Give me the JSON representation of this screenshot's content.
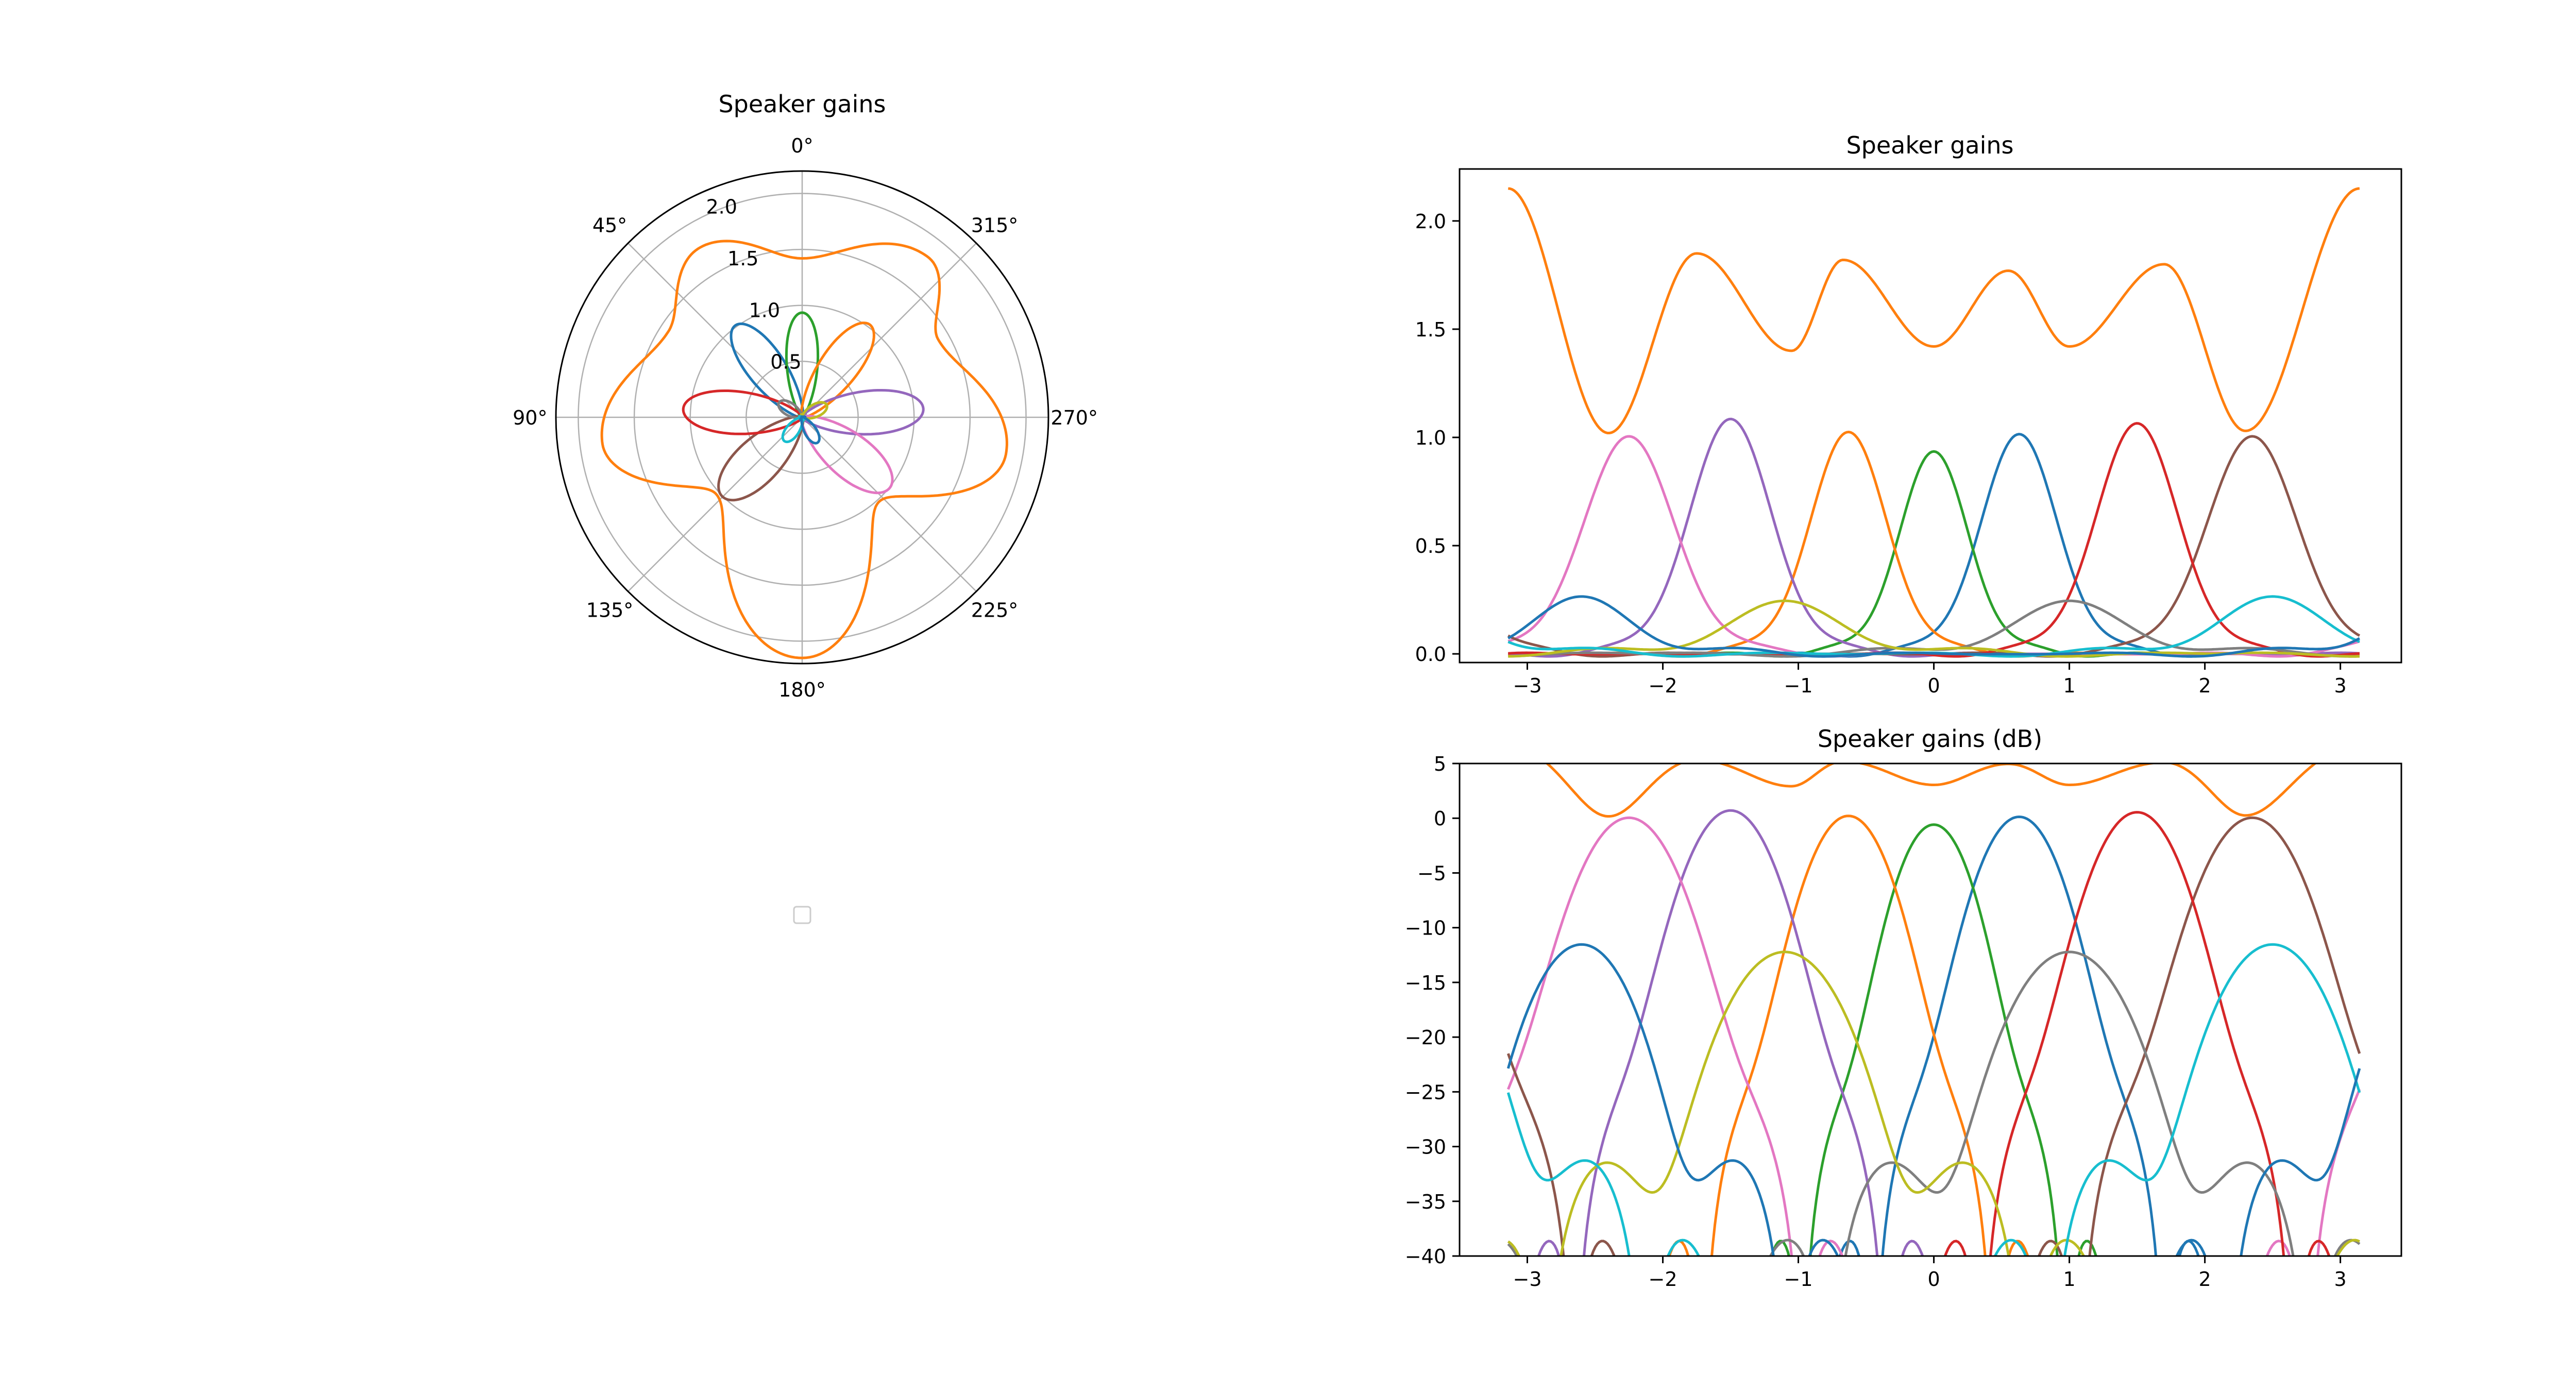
{
  "chart_data": [
    {
      "type": "line",
      "projection": "polar",
      "title": "Speaker gains",
      "theta_zero": "top",
      "theta_direction": "counterclockwise",
      "theta_ticks": [
        "0°",
        "45°",
        "90°",
        "135°",
        "180°",
        "225°",
        "270°",
        "315°"
      ],
      "r_ticks": [
        "0.5",
        "1.0",
        "1.5",
        "2.0"
      ],
      "r_tick_values": [
        0.5,
        1.0,
        1.5,
        2.0
      ],
      "rlim": [
        0,
        2.2
      ],
      "grid": true,
      "legend": "center, empty (no entries)"
    },
    {
      "type": "line",
      "title": "Speaker gains",
      "xlim": [
        -3.5,
        3.45
      ],
      "ylim": [
        -0.04,
        2.24
      ],
      "x_ticks": [
        "−3",
        "−2",
        "−1",
        "0",
        "1",
        "2",
        "3"
      ],
      "x_tick_values": [
        -3,
        -2,
        -1,
        0,
        1,
        2,
        3
      ],
      "y_ticks": [
        "0.0",
        "0.5",
        "1.0",
        "1.5",
        "2.0"
      ],
      "y_tick_values": [
        0,
        0.5,
        1,
        1.5,
        2
      ],
      "grid": false
    },
    {
      "type": "line",
      "title": "Speaker gains (dB)",
      "xlim": [
        -3.5,
        3.45
      ],
      "ylim": [
        -40,
        5
      ],
      "x_ticks": [
        "−3",
        "−2",
        "−1",
        "0",
        "1",
        "2",
        "3"
      ],
      "x_tick_values": [
        -3,
        -2,
        -1,
        0,
        1,
        2,
        3
      ],
      "y_ticks": [
        "5",
        "0",
        "−5",
        "−10",
        "−15",
        "−20",
        "−25",
        "−30",
        "−35",
        "−40"
      ],
      "y_tick_values": [
        5,
        0,
        -5,
        -10,
        -15,
        -20,
        -25,
        -30,
        -35,
        -40
      ],
      "grid": false
    }
  ],
  "series_model": {
    "x_range": [
      -3.14159,
      3.14159
    ],
    "lobes": [
      {
        "color": "#1f77b4",
        "center": 0.63,
        "peak": 0.98,
        "width": 0.42
      },
      {
        "color": "#2ca02c",
        "center": 0.0,
        "peak": 0.9,
        "width": 0.38
      },
      {
        "color": "#ff7f0e",
        "center": -0.63,
        "peak": 0.99,
        "width": 0.42
      },
      {
        "color": "#9467bd",
        "center": -1.5,
        "peak": 1.05,
        "width": 0.45
      },
      {
        "color": "#e377c2",
        "center": -2.25,
        "peak": 0.97,
        "width": 0.5
      },
      {
        "color": "#8c564b",
        "center": 2.35,
        "peak": 0.97,
        "width": 0.5
      },
      {
        "color": "#d62728",
        "center": 1.5,
        "peak": 1.03,
        "width": 0.45
      },
      {
        "color": "#7f7f7f",
        "center": 1.0,
        "peak": 0.21,
        "width": 0.7
      },
      {
        "color": "#bcbd22",
        "center": -1.1,
        "peak": 0.21,
        "width": 0.7
      },
      {
        "color": "#17becf",
        "center": 2.5,
        "peak": 0.23,
        "width": 0.65
      },
      {
        "color": "#1f77b4",
        "center": -2.6,
        "peak": 0.23,
        "width": 0.6
      }
    ],
    "sum": {
      "color": "#ff7f0e",
      "minima": [
        1.02,
        1.4,
        1.42,
        1.42,
        1.03
      ],
      "maxima": [
        2.15,
        1.85,
        1.82,
        1.77,
        1.8
      ]
    }
  }
}
